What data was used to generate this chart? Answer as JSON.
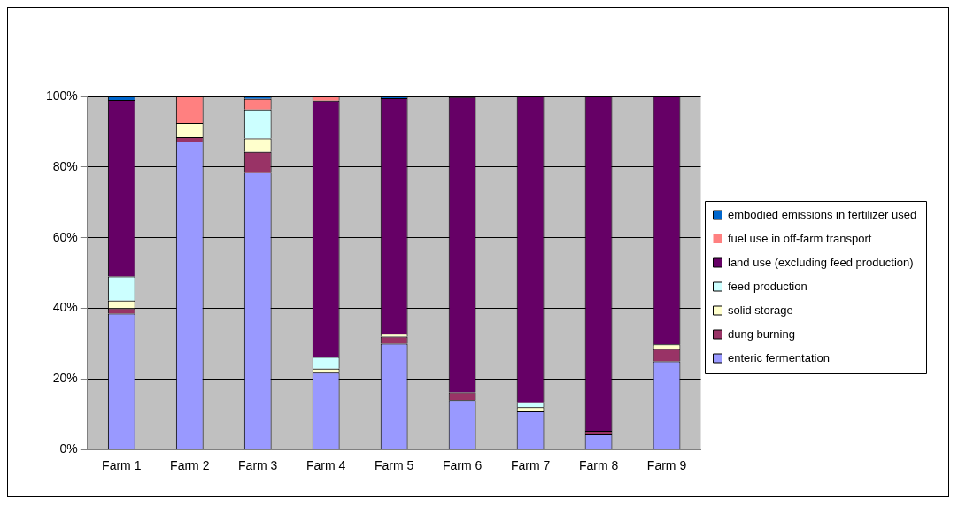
{
  "chart_data": {
    "type": "bar",
    "stacked": true,
    "categories": [
      "Farm 1",
      "Farm 2",
      "Farm 3",
      "Farm 4",
      "Farm 5",
      "Farm 6",
      "Farm 7",
      "Farm 8",
      "Farm 9"
    ],
    "series": [
      {
        "name": "enteric fermentation",
        "color": "#9999ff",
        "values": [
          38.5,
          87.2,
          78.5,
          21.8,
          30,
          14,
          10.8,
          4.3,
          25
        ]
      },
      {
        "name": "dung burning",
        "color": "#993366",
        "values": [
          1.5,
          1.3,
          5.8,
          0.3,
          2,
          2.2,
          null,
          1,
          3.5
        ]
      },
      {
        "name": "solid storage",
        "color": "#ffffcc",
        "values": [
          2.2,
          4,
          3.8,
          0.8,
          0.8,
          null,
          1.2,
          null,
          1.3
        ]
      },
      {
        "name": "feed production",
        "color": "#ccffff",
        "values": [
          6.8,
          null,
          8.2,
          3.3,
          null,
          null,
          1.4,
          null,
          null
        ]
      },
      {
        "name": "land use (excluding feed production)",
        "color": "#660066",
        "values": [
          50,
          null,
          null,
          72.6,
          66.7,
          83.6,
          86.6,
          94.7,
          70.2
        ]
      },
      {
        "name": "fuel use in off-farm transport",
        "color": "#ff8080",
        "values": [
          null,
          7.5,
          3,
          1.2,
          null,
          null,
          null,
          null,
          null
        ]
      },
      {
        "name": "embodied emissions in fertilizer used",
        "color": "#0066cc",
        "values": [
          1,
          null,
          0.7,
          null,
          0.5,
          null,
          null,
          null,
          null
        ]
      }
    ],
    "ylim": [
      0,
      100
    ],
    "yticks": [
      {
        "value": 0,
        "label": "0%"
      },
      {
        "value": 20,
        "label": "20%"
      },
      {
        "value": 40,
        "label": "40%"
      },
      {
        "value": 60,
        "label": "60%"
      },
      {
        "value": 80,
        "label": "80%"
      },
      {
        "value": 100,
        "label": "100%"
      }
    ],
    "grid": "y",
    "legend": "right"
  }
}
